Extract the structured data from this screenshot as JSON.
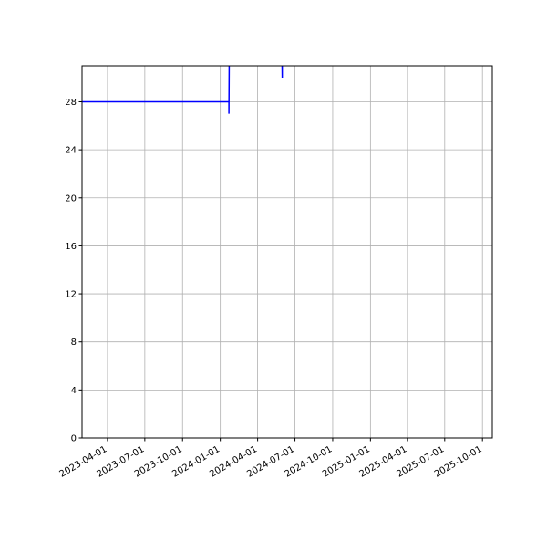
{
  "chart_data": {
    "type": "line",
    "title": "",
    "xlabel": "",
    "ylabel": "",
    "xlim": [
      "2023-01-29",
      "2025-10-25"
    ],
    "ylim": [
      0,
      31
    ],
    "grid": true,
    "y_ticks": [
      0,
      4,
      8,
      12,
      16,
      20,
      24,
      28
    ],
    "x_ticks": [
      "2023-04-01",
      "2023-07-01",
      "2023-10-01",
      "2024-01-01",
      "2024-04-01",
      "2024-07-01",
      "2024-10-01",
      "2025-01-01",
      "2025-04-01",
      "2025-07-01",
      "2025-10-01"
    ],
    "series": [
      {
        "color": "#0000ff",
        "x": [
          "2023-01-29",
          "2024-01-22",
          "2024-01-22",
          "2024-01-23",
          "2024-05-30",
          "2024-05-31",
          "2024-05-31"
        ],
        "y": [
          28,
          28,
          27,
          33,
          33,
          30,
          33
        ]
      }
    ]
  }
}
